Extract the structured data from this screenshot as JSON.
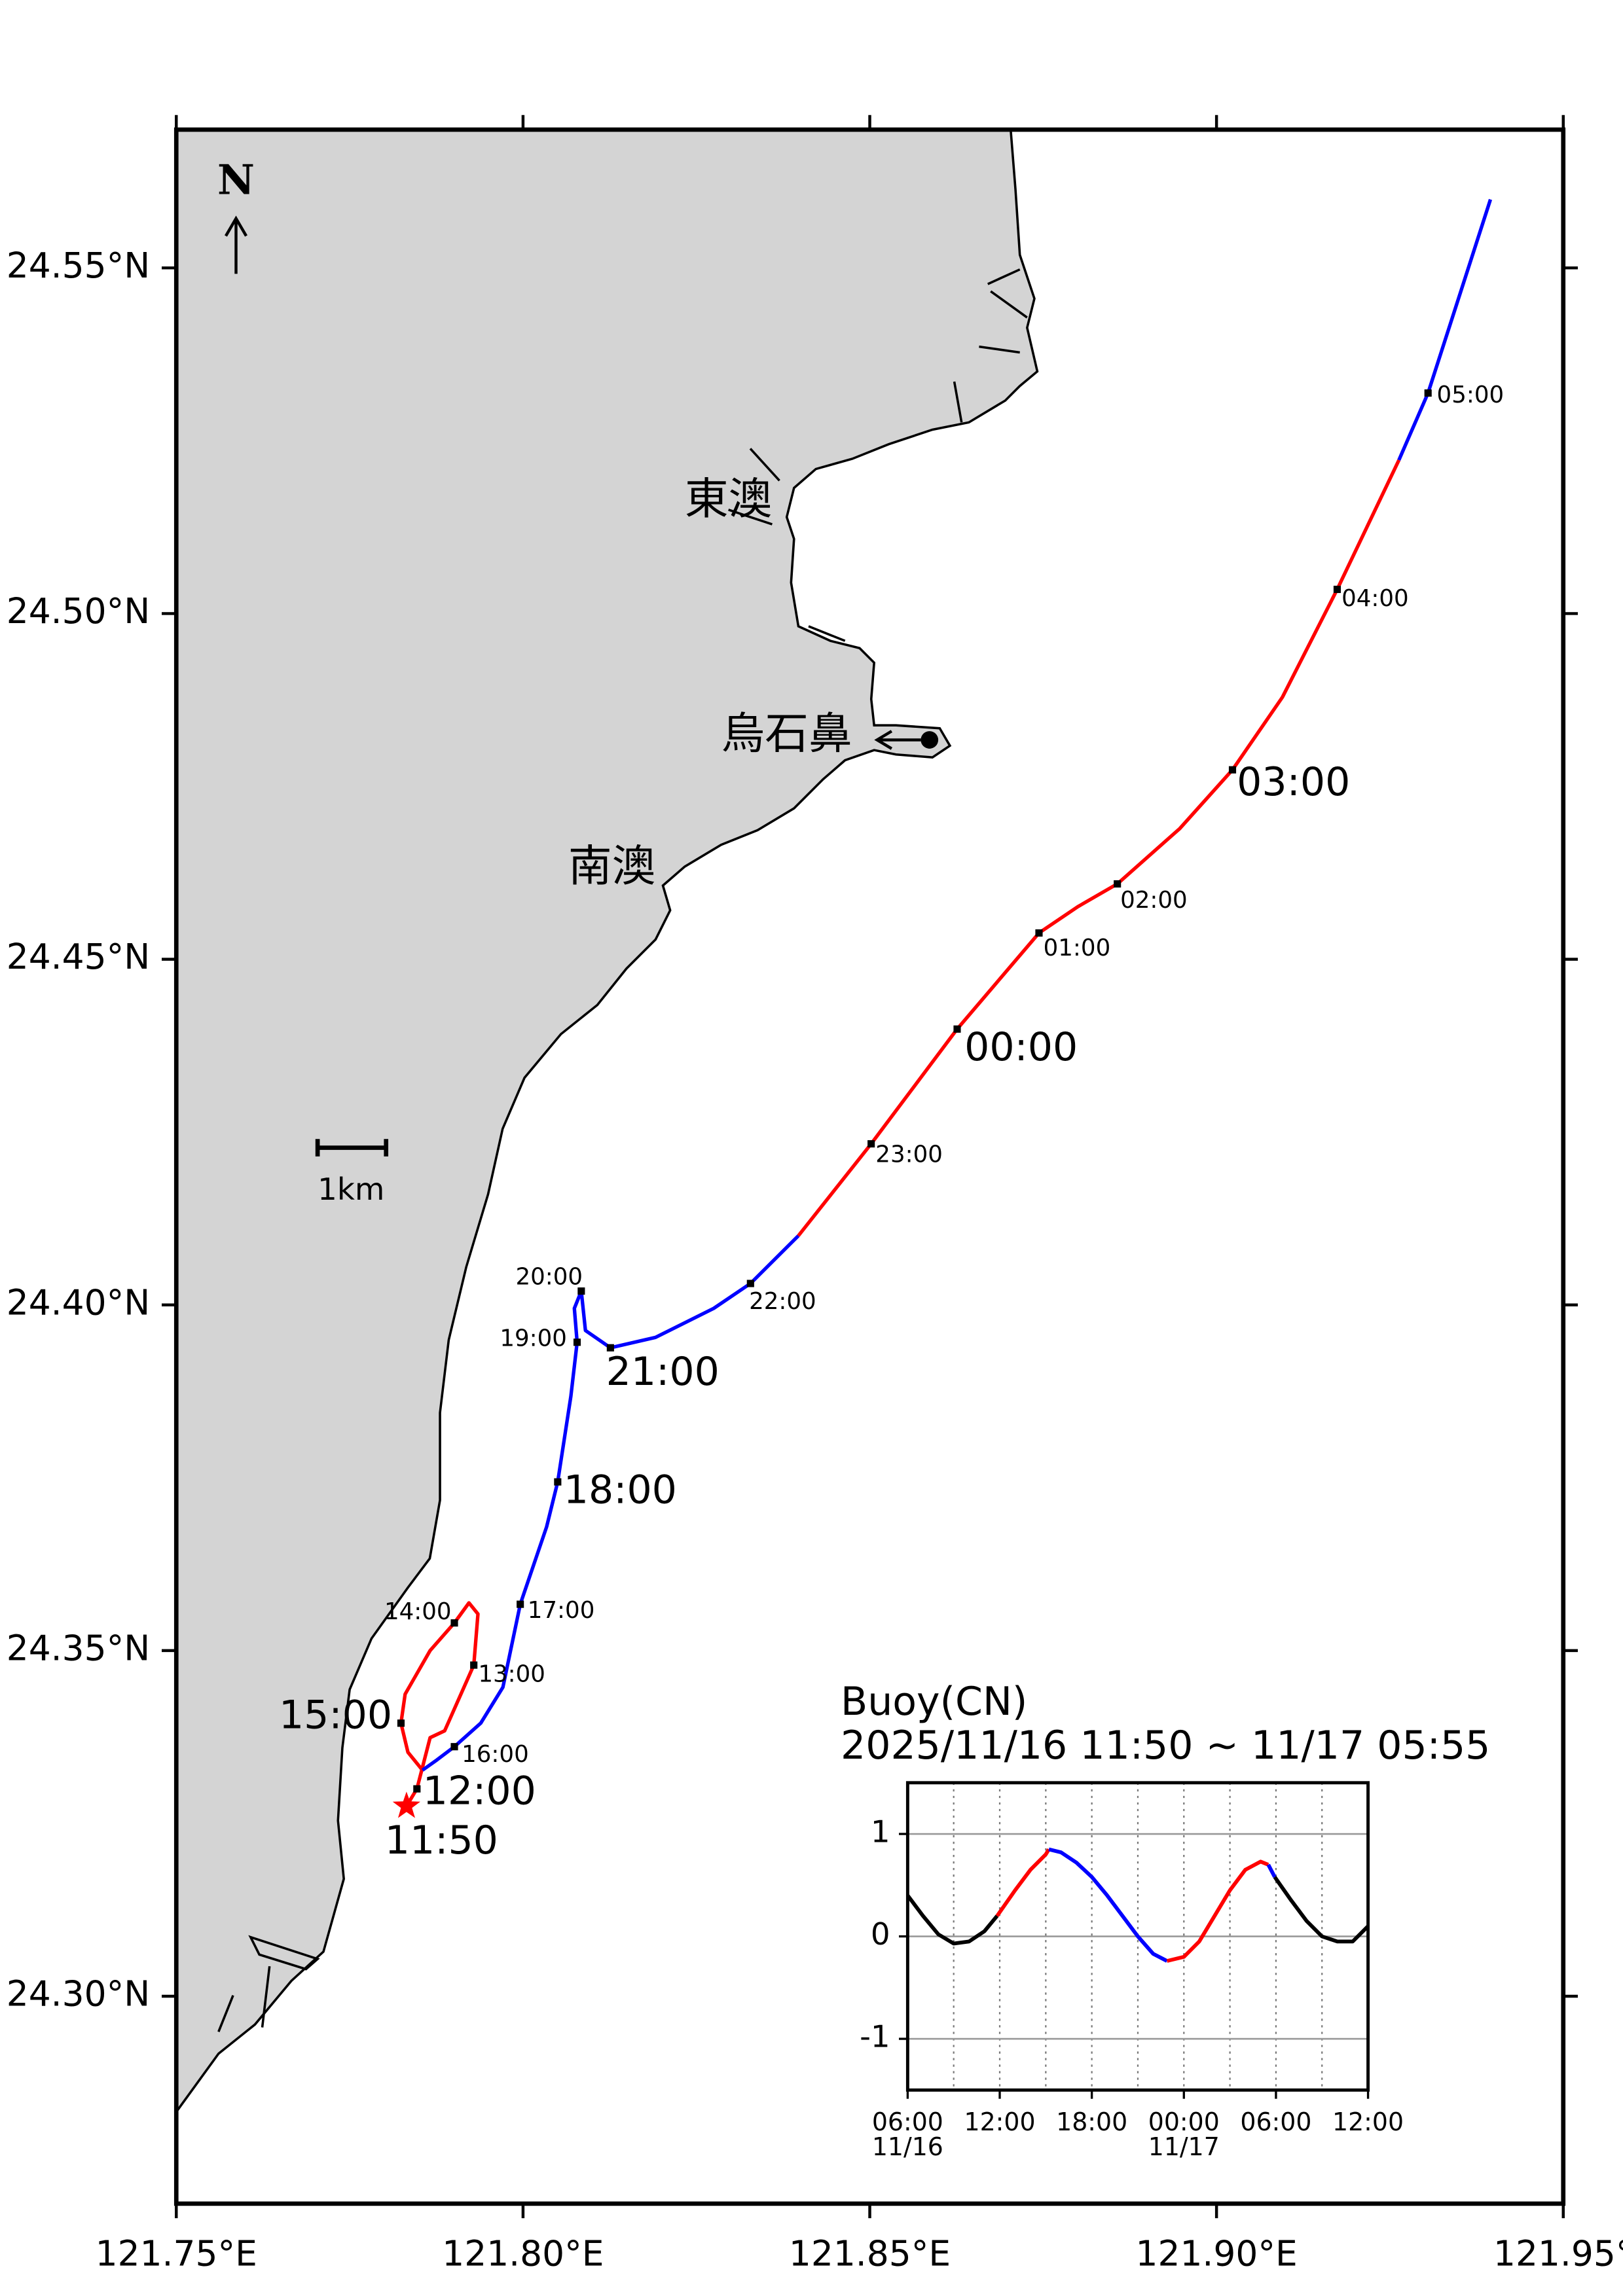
{
  "map": {
    "xlim": [
      121.75,
      121.95
    ],
    "ylim": [
      24.27,
      24.57
    ],
    "xticks": [
      {
        "value": 121.75,
        "label": "121.75°E"
      },
      {
        "value": 121.8,
        "label": "121.80°E"
      },
      {
        "value": 121.85,
        "label": "121.85°E"
      },
      {
        "value": 121.9,
        "label": "121.90°E"
      },
      {
        "value": 121.95,
        "label": "121.95°"
      }
    ],
    "yticks": [
      {
        "value": 24.3,
        "label": "24.30°N"
      },
      {
        "value": 24.35,
        "label": "24.35°N"
      },
      {
        "value": 24.4,
        "label": "24.40°N"
      },
      {
        "value": 24.45,
        "label": "24.45°N"
      },
      {
        "value": 24.5,
        "label": "24.50°N"
      },
      {
        "value": 24.55,
        "label": "24.55°N"
      }
    ],
    "north_label": "N",
    "scale_label": "1km",
    "places": [
      "東澳",
      "烏石鼻",
      "南澳"
    ],
    "track": [
      {
        "color": "#ff0000",
        "lon": [
          121.7832,
          121.7847,
          121.7866,
          121.7887,
          121.7929,
          121.7935,
          121.7922,
          121.7901,
          121.7866,
          121.783,
          121.7824,
          121.7834,
          121.7855
        ],
        "lat": [
          24.3275,
          24.33,
          24.3374,
          24.3384,
          24.3479,
          24.3553,
          24.3569,
          24.354,
          24.35,
          24.3437,
          24.3395,
          24.3353,
          24.3327
        ]
      },
      {
        "color": "#0000ff",
        "lon": [
          121.7855,
          121.7876,
          121.7901,
          121.7939,
          121.7971,
          121.7996,
          121.8034,
          121.805,
          121.8069,
          121.8078,
          121.8074,
          121.8084,
          121.809,
          121.8126,
          121.8191,
          121.8275,
          121.8328,
          121.8397
        ],
        "lat": [
          24.3327,
          24.3342,
          24.3361,
          24.3395,
          24.3447,
          24.3567,
          24.3679,
          24.3744,
          24.3868,
          24.3946,
          24.3995,
          24.402,
          24.3963,
          24.3938,
          24.3953,
          24.3995,
          24.4031,
          24.41
        ]
      },
      {
        "color": "#ff0000",
        "lon": [
          121.8397,
          121.8502,
          121.8626,
          121.8744,
          121.88,
          121.8857,
          121.8947,
          121.9023,
          121.9095,
          121.9174,
          121.9263
        ],
        "lat": [
          24.41,
          24.4233,
          24.4399,
          24.4538,
          24.4576,
          24.4609,
          24.4689,
          24.4774,
          24.4879,
          24.5035,
          24.5222
        ]
      },
      {
        "color": "#0000ff",
        "lon": [
          121.9263,
          121.9305,
          121.9395
        ],
        "lat": [
          24.5222,
          24.5319,
          24.5599
        ]
      }
    ],
    "start": {
      "label": "11:50",
      "lon": 121.7832,
      "lat": 24.3275
    },
    "markers": [
      {
        "label": "12:00",
        "lon": 121.7847,
        "lat": 24.33,
        "large": true
      },
      {
        "label": "13:00",
        "lon": 121.7929,
        "lat": 24.3479,
        "large": false
      },
      {
        "label": "14:00",
        "lon": 121.7901,
        "lat": 24.354,
        "large": false
      },
      {
        "label": "15:00",
        "lon": 121.7824,
        "lat": 24.3395,
        "large": true
      },
      {
        "label": "16:00",
        "lon": 121.7901,
        "lat": 24.3361,
        "large": false
      },
      {
        "label": "17:00",
        "lon": 121.7996,
        "lat": 24.3567,
        "large": false
      },
      {
        "label": "18:00",
        "lon": 121.805,
        "lat": 24.3744,
        "large": true
      },
      {
        "label": "19:00",
        "lon": 121.8078,
        "lat": 24.3946,
        "large": false
      },
      {
        "label": "20:00",
        "lon": 121.8084,
        "lat": 24.402,
        "large": false
      },
      {
        "label": "21:00",
        "lon": 121.8126,
        "lat": 24.3938,
        "large": true
      },
      {
        "label": "22:00",
        "lon": 121.8328,
        "lat": 24.4031,
        "large": false
      },
      {
        "label": "23:00",
        "lon": 121.8502,
        "lat": 24.4233,
        "large": false
      },
      {
        "label": "00:00",
        "lon": 121.8626,
        "lat": 24.4399,
        "large": true
      },
      {
        "label": "01:00",
        "lon": 121.8744,
        "lat": 24.4538,
        "large": false
      },
      {
        "label": "02:00",
        "lon": 121.8857,
        "lat": 24.4609,
        "large": false
      },
      {
        "label": "03:00",
        "lon": 121.9023,
        "lat": 24.4774,
        "large": true
      },
      {
        "label": "04:00",
        "lon": 121.9174,
        "lat": 24.5035,
        "large": false
      },
      {
        "label": "05:00",
        "lon": 121.9305,
        "lat": 24.5319,
        "large": false
      }
    ]
  },
  "chart_data": {
    "type": "line",
    "title": "Buoy(CN)",
    "subtitle": "2025/11/16 11:50 ~ 11/17 05:55",
    "xlim": [
      6,
      36
    ],
    "ylim": [
      -1.5,
      1.5
    ],
    "xticks": [
      {
        "value": 6,
        "label": "06:00"
      },
      {
        "value": 12,
        "label": "12:00"
      },
      {
        "value": 18,
        "label": "18:00"
      },
      {
        "value": 24,
        "label": "00:00"
      },
      {
        "value": 30,
        "label": "06:00"
      },
      {
        "value": 36,
        "label": "12:00"
      }
    ],
    "xdates": [
      {
        "value": 6,
        "label": "11/16"
      },
      {
        "value": 24,
        "label": "11/17"
      }
    ],
    "xgrid": [
      9,
      12,
      15,
      18,
      21,
      24,
      27,
      30,
      33
    ],
    "yticks": [
      -1,
      0,
      1
    ],
    "grid": true,
    "segments": [
      {
        "color": "#000000",
        "x": [
          6,
          7,
          8,
          9,
          10,
          11,
          11.83
        ],
        "y": [
          0.4,
          0.2,
          0.02,
          -0.07,
          -0.05,
          0.05,
          0.2
        ]
      },
      {
        "color": "#ff0000",
        "x": [
          11.83,
          13,
          14,
          15,
          15.2
        ],
        "y": [
          0.2,
          0.45,
          0.65,
          0.8,
          0.85
        ]
      },
      {
        "color": "#0000ff",
        "x": [
          15.2,
          16,
          17,
          18,
          19,
          20,
          21,
          22,
          22.9
        ],
        "y": [
          0.85,
          0.82,
          0.72,
          0.58,
          0.4,
          0.2,
          0.0,
          -0.17,
          -0.24
        ]
      },
      {
        "color": "#ff0000",
        "x": [
          22.9,
          24,
          25,
          26,
          27,
          28,
          29,
          29.5
        ],
        "y": [
          -0.24,
          -0.2,
          -0.05,
          0.2,
          0.45,
          0.65,
          0.73,
          0.7
        ]
      },
      {
        "color": "#0000ff",
        "x": [
          29.5,
          29.92
        ],
        "y": [
          0.7,
          0.58
        ]
      },
      {
        "color": "#000000",
        "x": [
          29.92,
          31,
          32,
          33,
          34,
          35,
          36
        ],
        "y": [
          0.58,
          0.35,
          0.15,
          0.0,
          -0.05,
          -0.05,
          0.1
        ]
      }
    ]
  }
}
